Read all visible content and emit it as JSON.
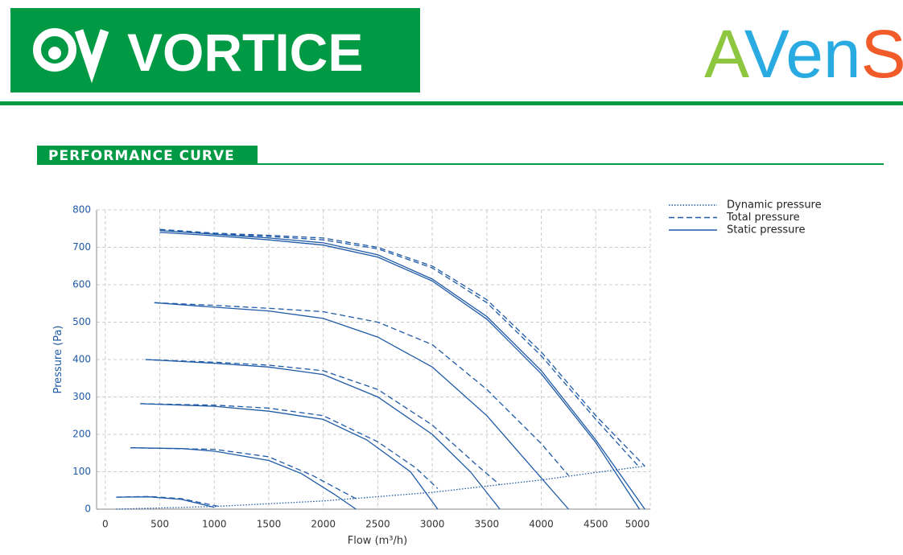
{
  "header": {
    "left_logo": "VORTICE",
    "right_logo": [
      "A",
      "Ven",
      "S"
    ],
    "section_title": "PERFORMANCE CURVE"
  },
  "chart_data": {
    "type": "line",
    "x_label": "Flow (m³/h)",
    "y_label": "Pressure (Pa)",
    "xlim": [
      -80,
      5000
    ],
    "ylim": [
      0,
      800
    ],
    "xticks": [
      0,
      500,
      1000,
      1500,
      2000,
      2500,
      3000,
      3500,
      4000,
      4500,
      5000
    ],
    "yticks": [
      0,
      100,
      200,
      300,
      400,
      500,
      600,
      700,
      800
    ],
    "grid": true,
    "legend": "top-right",
    "series": [
      {
        "name": "Dynamic pressure",
        "color": "#1f5aa6",
        "dash": "dotted",
        "curves": [
          {
            "x": [
              100,
              1000,
              2000,
              3000,
              4000,
              4500,
              4950
            ],
            "values": [
              0,
              7,
              22,
              45,
              78,
              98,
              115
            ]
          }
        ]
      },
      {
        "name": "Total pressure",
        "color": "#1f5aa6",
        "dash": "dashed",
        "curves": [
          {
            "x": [
              500,
              1000,
              1500,
              2000,
              2500,
              3000,
              3500,
              4000,
              4500,
              4950
            ],
            "values": [
              748,
              738,
              732,
              725,
              700,
              650,
              560,
              420,
              250,
              115
            ]
          },
          {
            "x": [
              500,
              1000,
              1500,
              2000,
              2500,
              3000,
              3500,
              4000,
              4500,
              4900
            ],
            "values": [
              745,
              736,
              729,
              720,
              696,
              645,
              552,
              410,
              240,
              112
            ]
          },
          {
            "x": [
              450,
              1000,
              1500,
              2000,
              2500,
              3000,
              3500,
              4000,
              4250
            ],
            "values": [
              552,
              545,
              537,
              528,
              500,
              440,
              320,
              175,
              90
            ]
          },
          {
            "x": [
              370,
              1000,
              1500,
              2000,
              2500,
              3000,
              3400,
              3620
            ],
            "values": [
              400,
              393,
              385,
              370,
              320,
              225,
              120,
              65
            ]
          },
          {
            "x": [
              320,
              1000,
              1500,
              2000,
              2500,
              2850,
              3050
            ],
            "values": [
              282,
              278,
              270,
              250,
              180,
              110,
              55
            ]
          },
          {
            "x": [
              230,
              1000,
              1500,
              1900,
              2300
            ],
            "values": [
              164,
              160,
              140,
              90,
              28
            ]
          },
          {
            "x": [
              100,
              400,
              700,
              1030
            ],
            "values": [
              32,
              34,
              28,
              8
            ]
          }
        ]
      },
      {
        "name": "Static pressure",
        "color": "#1f5aa6",
        "dash": "solid",
        "curves": [
          {
            "x": [
              500,
              1000,
              1500,
              2000,
              2500,
              3000,
              3500,
              4000,
              4500,
              4950
            ],
            "values": [
              745,
              735,
              725,
              712,
              680,
              615,
              515,
              370,
              185,
              0
            ]
          },
          {
            "x": [
              500,
              1000,
              1500,
              2000,
              2500,
              3000,
              3500,
              4000,
              4500,
              4900
            ],
            "values": [
              740,
              731,
              720,
              706,
              674,
              610,
              508,
              362,
              178,
              0
            ]
          },
          {
            "x": [
              450,
              1000,
              1500,
              2000,
              2500,
              3000,
              3500,
              3800,
              4250
            ],
            "values": [
              552,
              540,
              530,
              510,
              460,
              380,
              250,
              150,
              0
            ]
          },
          {
            "x": [
              370,
              1000,
              1500,
              2000,
              2500,
              3000,
              3350,
              3620
            ],
            "values": [
              400,
              390,
              380,
              360,
              300,
              200,
              100,
              0
            ]
          },
          {
            "x": [
              320,
              1000,
              1500,
              2000,
              2400,
              2800,
              3050
            ],
            "values": [
              282,
              275,
              262,
              240,
              185,
              100,
              0
            ]
          },
          {
            "x": [
              230,
              700,
              1000,
              1500,
              1800,
              2100,
              2300
            ],
            "values": [
              164,
              162,
              155,
              130,
              95,
              40,
              0
            ]
          },
          {
            "x": [
              100,
              400,
              700,
              1000
            ],
            "values": [
              32,
              33,
              26,
              5
            ]
          }
        ]
      }
    ]
  }
}
